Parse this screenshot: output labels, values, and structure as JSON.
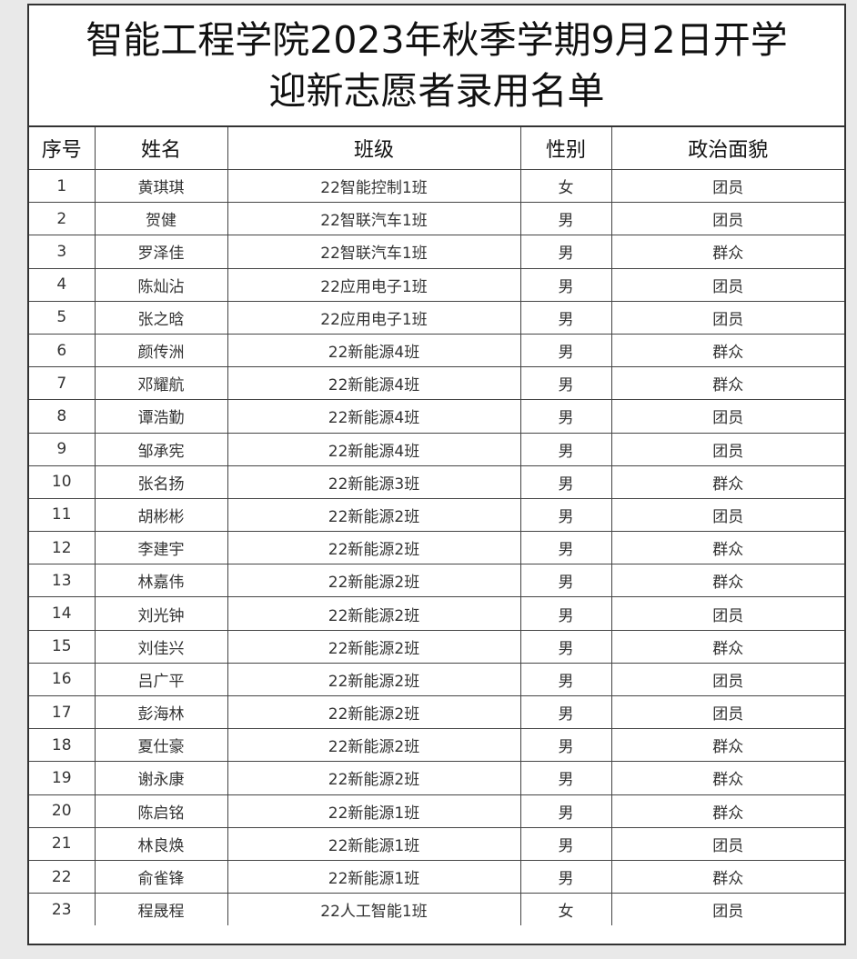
{
  "title": {
    "line1": "智能工程学院2023年秋季学期9月2日开学",
    "line2": "迎新志愿者录用名单"
  },
  "columns": [
    "序号",
    "姓名",
    "班级",
    "性别",
    "政治面貌"
  ],
  "rows": [
    [
      "1",
      "黄琪琪",
      "22智能控制1班",
      "女",
      "团员"
    ],
    [
      "2",
      "贺健",
      "22智联汽车1班",
      "男",
      "团员"
    ],
    [
      "3",
      "罗泽佳",
      "22智联汽车1班",
      "男",
      "群众"
    ],
    [
      "4",
      "陈灿沾",
      "22应用电子1班",
      "男",
      "团员"
    ],
    [
      "5",
      "张之晗",
      "22应用电子1班",
      "男",
      "团员"
    ],
    [
      "6",
      "颜传洲",
      "22新能源4班",
      "男",
      "群众"
    ],
    [
      "7",
      "邓耀航",
      "22新能源4班",
      "男",
      "群众"
    ],
    [
      "8",
      "谭浩勤",
      "22新能源4班",
      "男",
      "团员"
    ],
    [
      "9",
      "邹承宪",
      "22新能源4班",
      "男",
      "团员"
    ],
    [
      "10",
      "张名扬",
      "22新能源3班",
      "男",
      "群众"
    ],
    [
      "11",
      "胡彬彬",
      "22新能源2班",
      "男",
      "团员"
    ],
    [
      "12",
      "李建宇",
      "22新能源2班",
      "男",
      "群众"
    ],
    [
      "13",
      "林嘉伟",
      "22新能源2班",
      "男",
      "群众"
    ],
    [
      "14",
      "刘光钟",
      "22新能源2班",
      "男",
      "团员"
    ],
    [
      "15",
      "刘佳兴",
      "22新能源2班",
      "男",
      "群众"
    ],
    [
      "16",
      "吕广平",
      "22新能源2班",
      "男",
      "团员"
    ],
    [
      "17",
      "彭海林",
      "22新能源2班",
      "男",
      "团员"
    ],
    [
      "18",
      "夏仕豪",
      "22新能源2班",
      "男",
      "群众"
    ],
    [
      "19",
      "谢永康",
      "22新能源2班",
      "男",
      "群众"
    ],
    [
      "20",
      "陈启铭",
      "22新能源1班",
      "男",
      "群众"
    ],
    [
      "21",
      "林良焕",
      "22新能源1班",
      "男",
      "团员"
    ],
    [
      "22",
      "俞雀锋",
      "22新能源1班",
      "男",
      "群众"
    ],
    [
      "23",
      "程晟程",
      "22人工智能1班",
      "女",
      "团员"
    ]
  ]
}
